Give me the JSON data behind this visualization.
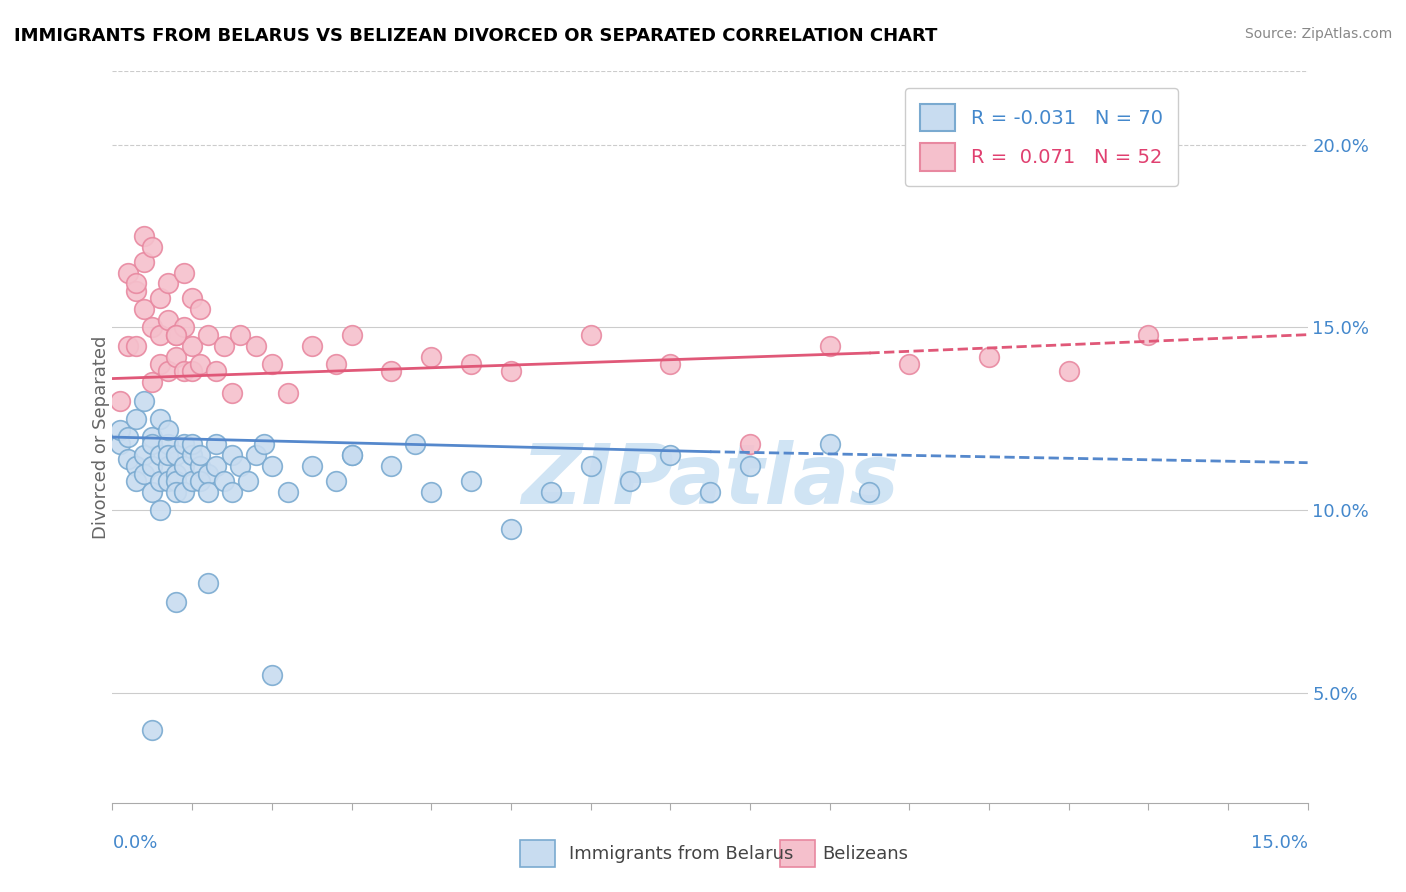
{
  "title": "IMMIGRANTS FROM BELARUS VS BELIZEAN DIVORCED OR SEPARATED CORRELATION CHART",
  "source_text": "Source: ZipAtlas.com",
  "ylabel": "Divorced or Separated",
  "right_yticks": [
    0.05,
    0.1,
    0.15,
    0.2
  ],
  "right_ytick_labels": [
    "5.0%",
    "10.0%",
    "15.0%",
    "20.0%"
  ],
  "legend_blue_label": "Immigrants from Belarus",
  "legend_pink_label": "Belizeans",
  "legend_blue_R": "R = -0.031",
  "legend_blue_N": "N = 70",
  "legend_pink_R": "R =  0.071",
  "legend_pink_N": "N = 52",
  "blue_dot_face": "#c8dcf0",
  "blue_dot_edge": "#7aaad0",
  "pink_dot_face": "#f5c0cc",
  "pink_dot_edge": "#e888a0",
  "blue_line_color": "#5588cc",
  "pink_line_color": "#e05878",
  "watermark": "ZIPatlas",
  "watermark_color": "#d0e4f4",
  "blue_scatter_x": [
    0.001,
    0.001,
    0.002,
    0.002,
    0.003,
    0.003,
    0.003,
    0.004,
    0.004,
    0.004,
    0.005,
    0.005,
    0.005,
    0.005,
    0.006,
    0.006,
    0.006,
    0.006,
    0.007,
    0.007,
    0.007,
    0.007,
    0.007,
    0.008,
    0.008,
    0.008,
    0.008,
    0.009,
    0.009,
    0.009,
    0.01,
    0.01,
    0.01,
    0.011,
    0.011,
    0.011,
    0.012,
    0.012,
    0.013,
    0.013,
    0.014,
    0.015,
    0.015,
    0.016,
    0.017,
    0.018,
    0.019,
    0.02,
    0.022,
    0.025,
    0.028,
    0.03,
    0.035,
    0.038,
    0.04,
    0.05,
    0.06,
    0.065,
    0.07,
    0.075,
    0.08,
    0.09,
    0.095,
    0.03,
    0.045,
    0.055,
    0.012,
    0.008,
    0.02,
    0.005
  ],
  "blue_scatter_y": [
    0.118,
    0.122,
    0.12,
    0.114,
    0.125,
    0.112,
    0.108,
    0.13,
    0.115,
    0.11,
    0.105,
    0.12,
    0.118,
    0.112,
    0.1,
    0.125,
    0.115,
    0.108,
    0.112,
    0.108,
    0.118,
    0.122,
    0.115,
    0.11,
    0.115,
    0.108,
    0.105,
    0.112,
    0.118,
    0.105,
    0.108,
    0.115,
    0.118,
    0.112,
    0.108,
    0.115,
    0.11,
    0.105,
    0.112,
    0.118,
    0.108,
    0.115,
    0.105,
    0.112,
    0.108,
    0.115,
    0.118,
    0.112,
    0.105,
    0.112,
    0.108,
    0.115,
    0.112,
    0.118,
    0.105,
    0.095,
    0.112,
    0.108,
    0.115,
    0.105,
    0.112,
    0.118,
    0.105,
    0.115,
    0.108,
    0.105,
    0.08,
    0.075,
    0.055,
    0.04
  ],
  "pink_scatter_x": [
    0.001,
    0.002,
    0.002,
    0.003,
    0.003,
    0.004,
    0.004,
    0.005,
    0.005,
    0.006,
    0.006,
    0.007,
    0.007,
    0.008,
    0.008,
    0.009,
    0.009,
    0.01,
    0.01,
    0.011,
    0.012,
    0.013,
    0.014,
    0.015,
    0.016,
    0.018,
    0.02,
    0.022,
    0.025,
    0.028,
    0.03,
    0.035,
    0.04,
    0.045,
    0.05,
    0.06,
    0.07,
    0.08,
    0.09,
    0.1,
    0.11,
    0.12,
    0.13,
    0.003,
    0.004,
    0.005,
    0.006,
    0.007,
    0.008,
    0.009,
    0.01,
    0.011
  ],
  "pink_scatter_y": [
    0.13,
    0.165,
    0.145,
    0.16,
    0.145,
    0.175,
    0.155,
    0.135,
    0.15,
    0.14,
    0.148,
    0.138,
    0.152,
    0.142,
    0.148,
    0.138,
    0.15,
    0.138,
    0.145,
    0.14,
    0.148,
    0.138,
    0.145,
    0.132,
    0.148,
    0.145,
    0.14,
    0.132,
    0.145,
    0.14,
    0.148,
    0.138,
    0.142,
    0.14,
    0.138,
    0.148,
    0.14,
    0.118,
    0.145,
    0.14,
    0.142,
    0.138,
    0.148,
    0.162,
    0.168,
    0.172,
    0.158,
    0.162,
    0.148,
    0.165,
    0.158,
    0.155
  ],
  "xlim": [
    0.0,
    0.15
  ],
  "ylim": [
    0.02,
    0.22
  ],
  "blue_trend_start_x": 0.0,
  "blue_trend_start_y": 0.12,
  "blue_trend_solid_end_x": 0.075,
  "blue_trend_solid_end_y": 0.116,
  "blue_trend_end_x": 0.15,
  "blue_trend_end_y": 0.113,
  "pink_trend_start_x": 0.0,
  "pink_trend_start_y": 0.136,
  "pink_trend_solid_end_x": 0.095,
  "pink_trend_solid_end_y": 0.143,
  "pink_trend_end_x": 0.15,
  "pink_trend_end_y": 0.148
}
